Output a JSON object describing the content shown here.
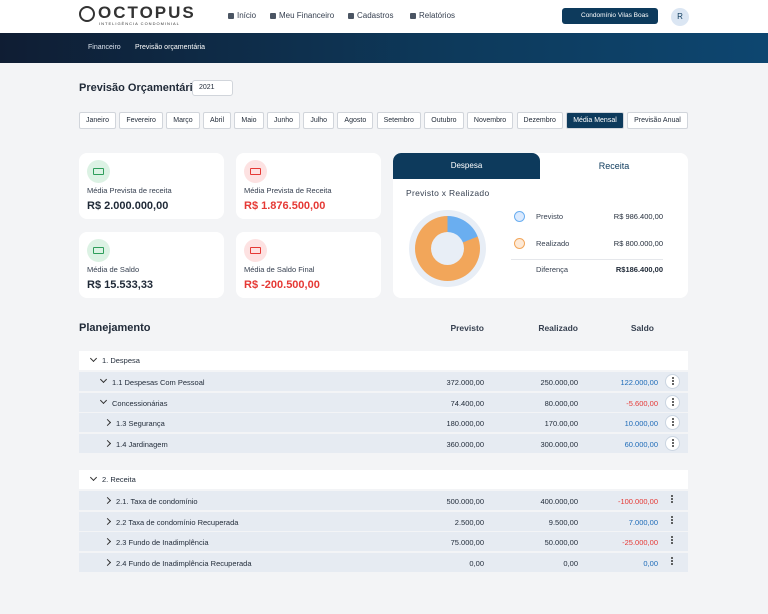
{
  "header": {
    "logo": "OCTOPUS",
    "tagline": "INTELIGÊNCIA CONDOMINIAL",
    "nav": [
      "Início",
      "Meu Financeiro",
      "Cadastros",
      "Relatórios"
    ],
    "condo": "Condomínio Vilas Boas",
    "avatar": "R"
  },
  "breadcrumb": [
    "Financeiro",
    "Previsão orçamentária"
  ],
  "page": {
    "title": "Previsão Orçamentária",
    "year": "2021"
  },
  "months": [
    "Janeiro",
    "Fevereiro",
    "Março",
    "Abril",
    "Maio",
    "Junho",
    "Julho",
    "Agosto",
    "Setembro",
    "Outubro",
    "Novembro",
    "Dezembro",
    "Média Mensal",
    "Previsão Anual"
  ],
  "cards": [
    {
      "label": "Média Prevista de receita",
      "value": "R$ 2.000.000,00"
    },
    {
      "label": "Média Prevista de Receita",
      "value": "R$ 1.876.500,00"
    },
    {
      "label": "Média de Saldo",
      "value": "R$ 15.533,33"
    },
    {
      "label": "Média de Saldo Final",
      "value": "R$ -200.500,00"
    }
  ],
  "panel": {
    "tabs": [
      "Despesa",
      "Receita"
    ],
    "title": "Previsto x Realizado",
    "rows": [
      {
        "label": "Previsto",
        "value": "R$ 986.400,00"
      },
      {
        "label": "Realizado",
        "value": "R$ 800.000,00"
      },
      {
        "label": "Diferença",
        "value": "R$186.400,00"
      }
    ]
  },
  "planning": {
    "title": "Planejamento",
    "columns": [
      "Previsto",
      "Realizado",
      "Saldo"
    ],
    "groups": [
      {
        "name": "1. Despesa",
        "rows": [
          {
            "name": "1.1 Despesas Com Pessoal",
            "previsto": "372.000,00",
            "realizado": "250.000,00",
            "saldo": "122.000,00"
          },
          {
            "name": "Concessionárias",
            "previsto": "74.400,00",
            "realizado": "80.000,00",
            "saldo": "-5.600,00"
          },
          {
            "name": "1.3 Segurança",
            "previsto": "180.000,00",
            "realizado": "170.00,00",
            "saldo": "10.000,00"
          },
          {
            "name": "1.4 Jardinagem",
            "previsto": "360.000,00",
            "realizado": "300.000,00",
            "saldo": "60.000,00"
          }
        ]
      },
      {
        "name": "2. Receita",
        "rows": [
          {
            "name": "2.1. Taxa de condomínio",
            "previsto": "500.000,00",
            "realizado": "400.000,00",
            "saldo": "-100.000,00"
          },
          {
            "name": "2.2 Taxa de condomínio Recuperada",
            "previsto": "2.500,00",
            "realizado": "9.500,00",
            "saldo": "7.000,00"
          },
          {
            "name": "2.3 Fundo de Inadimplência",
            "previsto": "75.000,00",
            "realizado": "50.000,00",
            "saldo": "-25.000,00"
          },
          {
            "name": "2.4 Fundo de Inadimplência Recuperada",
            "previsto": "0,00",
            "realizado": "0,00",
            "saldo": "0,00"
          }
        ]
      }
    ]
  }
}
